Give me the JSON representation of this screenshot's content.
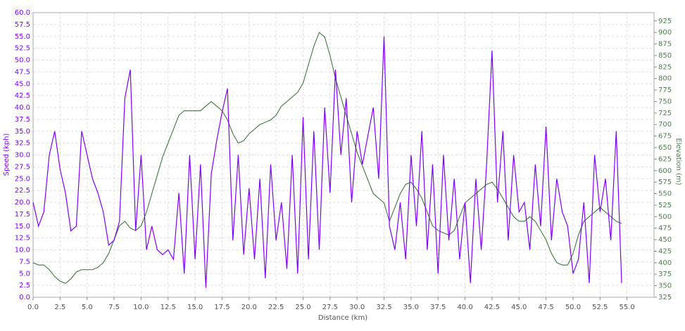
{
  "chart_data": {
    "type": "line",
    "x_label": "Distance (km)",
    "y_label": "Speed (kph)",
    "y2_label": "Elevation (m)",
    "grid": true,
    "xlim": [
      0,
      57.5
    ],
    "ylim": [
      0,
      60
    ],
    "y2lim": [
      325,
      943
    ],
    "xticks": [
      {
        "value": 0,
        "label": "0.0"
      },
      {
        "value": 2.5,
        "label": "2.5"
      },
      {
        "value": 5,
        "label": "5.0"
      },
      {
        "value": 7.5,
        "label": "7.5"
      },
      {
        "value": 10,
        "label": "10.0"
      },
      {
        "value": 12.5,
        "label": "12.5"
      },
      {
        "value": 15,
        "label": "15.0"
      },
      {
        "value": 17.5,
        "label": "17.5"
      },
      {
        "value": 20,
        "label": "20.0"
      },
      {
        "value": 22.5,
        "label": "22.5"
      },
      {
        "value": 25,
        "label": "25.0"
      },
      {
        "value": 27.5,
        "label": "27.5"
      },
      {
        "value": 30,
        "label": "30.0"
      },
      {
        "value": 32.5,
        "label": "32.5"
      },
      {
        "value": 35,
        "label": "35.0"
      },
      {
        "value": 37.5,
        "label": "37.5"
      },
      {
        "value": 40,
        "label": "40.0"
      },
      {
        "value": 42.5,
        "label": "42.5"
      },
      {
        "value": 45,
        "label": "45.0"
      },
      {
        "value": 47.5,
        "label": "47.5"
      },
      {
        "value": 50,
        "label": "50.0"
      },
      {
        "value": 52.5,
        "label": "52.5"
      },
      {
        "value": 55,
        "label": "55.0"
      }
    ],
    "yticks": [
      {
        "value": 0,
        "label": "0.0"
      },
      {
        "value": 2.5,
        "label": "2.5"
      },
      {
        "value": 5,
        "label": "5.0"
      },
      {
        "value": 7.5,
        "label": "7.5"
      },
      {
        "value": 10,
        "label": "10.0"
      },
      {
        "value": 12.5,
        "label": "12.5"
      },
      {
        "value": 15,
        "label": "15.0"
      },
      {
        "value": 17.5,
        "label": "17.5"
      },
      {
        "value": 20,
        "label": "20.0"
      },
      {
        "value": 22.5,
        "label": "22.5"
      },
      {
        "value": 25,
        "label": "25.0"
      },
      {
        "value": 27.5,
        "label": "27.5"
      },
      {
        "value": 30,
        "label": "30.0"
      },
      {
        "value": 32.5,
        "label": "32.5"
      },
      {
        "value": 35,
        "label": "35.0"
      },
      {
        "value": 37.5,
        "label": "37.5"
      },
      {
        "value": 40,
        "label": "40.0"
      },
      {
        "value": 42.5,
        "label": "42.5"
      },
      {
        "value": 45,
        "label": "45.0"
      },
      {
        "value": 47.5,
        "label": "47.5"
      },
      {
        "value": 50,
        "label": "50.0"
      },
      {
        "value": 52.5,
        "label": "52.5"
      },
      {
        "value": 55,
        "label": "55.0"
      },
      {
        "value": 57.5,
        "label": "57.5"
      },
      {
        "value": 60,
        "label": "60.0"
      }
    ],
    "y2ticks": [
      325,
      350,
      375,
      400,
      425,
      450,
      475,
      500,
      525,
      550,
      575,
      600,
      625,
      650,
      675,
      700,
      725,
      750,
      775,
      800,
      825,
      850,
      875,
      900,
      925
    ],
    "x": [
      0,
      0.5,
      1,
      1.5,
      2,
      2.5,
      3,
      3.5,
      4,
      4.5,
      5,
      5.5,
      6,
      6.5,
      7,
      7.5,
      8,
      8.5,
      9,
      9.5,
      10,
      10.5,
      11,
      11.5,
      12,
      12.5,
      13,
      13.5,
      14,
      14.5,
      15,
      15.5,
      16,
      16.5,
      17,
      17.5,
      18,
      18.5,
      19,
      19.5,
      20,
      20.5,
      21,
      21.5,
      22,
      22.5,
      23,
      23.5,
      24,
      24.5,
      25,
      25.5,
      26,
      26.5,
      27,
      27.5,
      28,
      28.5,
      29,
      29.5,
      30,
      30.5,
      31,
      31.5,
      32,
      32.5,
      33,
      33.5,
      34,
      34.5,
      35,
      35.5,
      36,
      36.5,
      37,
      37.5,
      38,
      38.5,
      39,
      39.5,
      40,
      40.5,
      41,
      41.5,
      42,
      42.5,
      43,
      43.5,
      44,
      44.5,
      45,
      45.5,
      46,
      46.5,
      47,
      47.5,
      48,
      48.5,
      49,
      49.5,
      50,
      50.5,
      51,
      51.5,
      52,
      52.5,
      53,
      53.5,
      54,
      54.5
    ],
    "series": [
      {
        "name": "Elevation",
        "color": "#4f7f4f",
        "axis": "y2",
        "values": [
          400,
          395,
          395,
          385,
          370,
          360,
          355,
          365,
          380,
          385,
          385,
          385,
          390,
          400,
          420,
          450,
          480,
          490,
          475,
          470,
          480,
          510,
          550,
          590,
          630,
          660,
          690,
          720,
          730,
          730,
          730,
          730,
          740,
          750,
          740,
          730,
          710,
          680,
          660,
          665,
          680,
          690,
          700,
          705,
          710,
          720,
          740,
          750,
          760,
          770,
          790,
          830,
          870,
          900,
          890,
          850,
          800,
          760,
          720,
          680,
          640,
          610,
          580,
          550,
          540,
          530,
          490,
          520,
          550,
          570,
          575,
          560,
          540,
          510,
          480,
          470,
          465,
          460,
          470,
          500,
          530,
          540,
          550,
          560,
          570,
          575,
          560,
          540,
          520,
          500,
          490,
          490,
          500,
          490,
          470,
          450,
          420,
          400,
          395,
          395,
          420,
          460,
          490,
          500,
          510,
          520,
          510,
          500,
          490,
          485
        ]
      },
      {
        "name": "Speed",
        "color": "#7f00ff",
        "values": [
          20,
          15,
          18,
          30,
          35,
          27,
          22,
          14,
          15,
          35,
          30,
          25,
          22,
          18,
          11,
          12,
          16,
          42,
          48,
          14,
          30,
          10,
          15,
          10,
          9,
          10,
          8,
          22,
          5,
          30,
          8,
          28,
          2,
          26,
          33,
          39,
          44,
          12,
          30,
          9,
          23,
          8,
          25,
          4,
          28,
          12,
          20,
          6,
          30,
          5,
          38,
          8,
          35,
          10,
          40,
          22,
          48,
          30,
          42,
          20,
          35,
          28,
          34,
          40,
          25,
          55,
          15,
          10,
          20,
          8,
          30,
          15,
          35,
          10,
          28,
          5,
          30,
          12,
          25,
          8,
          20,
          3,
          25,
          10,
          28,
          52,
          20,
          35,
          12,
          30,
          18,
          20,
          10,
          28,
          15,
          36,
          12,
          25,
          18,
          15,
          5,
          8,
          20,
          3,
          30,
          18,
          25,
          12,
          35,
          3
        ]
      }
    ]
  }
}
